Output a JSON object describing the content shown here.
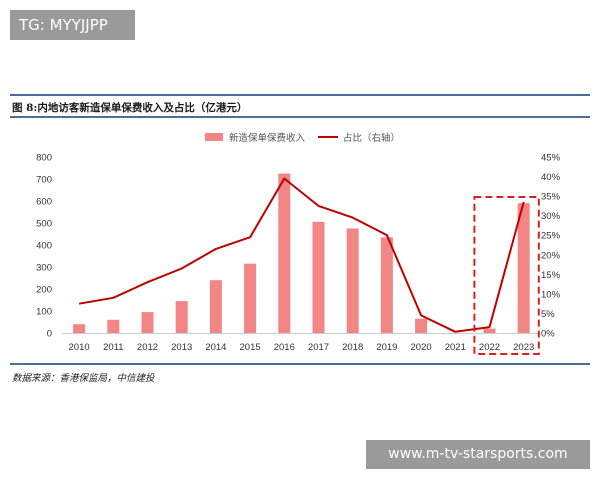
{
  "tag": "TG: MYYJJPP",
  "title": "图 8:内地访客新造保单保费收入及占比（亿港元）",
  "source": "数据来源：香港保监局，中信建投",
  "watermark": "www.m-tv-starsports.com",
  "colors": {
    "bar": "#f28585",
    "line": "#c00000",
    "highlight": "#d62020",
    "rule": "#4a6f99"
  },
  "chart_data": {
    "type": "bar",
    "categories": [
      "2010",
      "2011",
      "2012",
      "2013",
      "2014",
      "2015",
      "2016",
      "2017",
      "2018",
      "2019",
      "2020",
      "2021",
      "2022",
      "2023"
    ],
    "series": [
      {
        "name": "新造保单保费收入",
        "type": "bar",
        "axis": "left",
        "values": [
          40,
          60,
          95,
          145,
          240,
          315,
          725,
          505,
          475,
          435,
          65,
          0,
          20,
          590
        ]
      },
      {
        "name": "占比（右轴）",
        "type": "line",
        "axis": "right",
        "values": [
          7.5,
          9.0,
          13.0,
          16.5,
          21.5,
          24.5,
          39.5,
          32.5,
          29.5,
          25.0,
          4.5,
          0.3,
          1.5,
          33.5
        ]
      }
    ],
    "left_axis": {
      "ylim": [
        0,
        800
      ],
      "ticks": [
        "0",
        "100",
        "200",
        "300",
        "400",
        "500",
        "600",
        "700",
        "800"
      ]
    },
    "right_axis": {
      "ylim": [
        0,
        45
      ],
      "ticks": [
        "0%",
        "5%",
        "10%",
        "15%",
        "20%",
        "25%",
        "30%",
        "35%",
        "40%",
        "45%"
      ]
    },
    "highlight": [
      "2022",
      "2023"
    ],
    "legend_position": "top-center"
  }
}
